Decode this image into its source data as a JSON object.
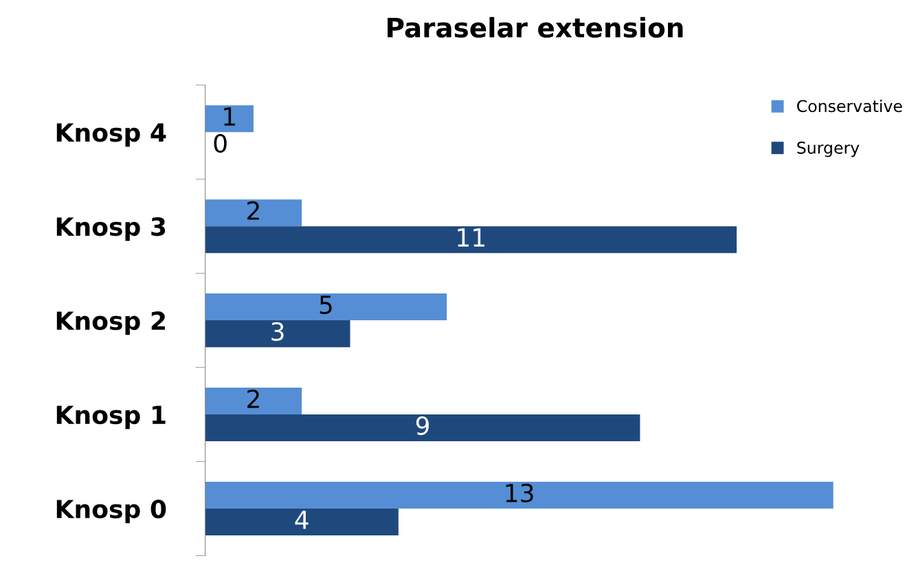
{
  "chart_data": {
    "type": "bar",
    "orientation": "horizontal",
    "title": "Paraselar extension",
    "categories": [
      "Knosp 4",
      "Knosp 3",
      "Knosp 2",
      "Knosp 1",
      "Knosp 0"
    ],
    "series": [
      {
        "name": "Conservative",
        "color": "#558ed5",
        "values": [
          1,
          2,
          5,
          2,
          13
        ]
      },
      {
        "name": "Surgery",
        "color": "#1f497d",
        "values": [
          0,
          11,
          3,
          9,
          4
        ]
      }
    ],
    "data_labels": true,
    "legend": "top right",
    "grid": false
  }
}
